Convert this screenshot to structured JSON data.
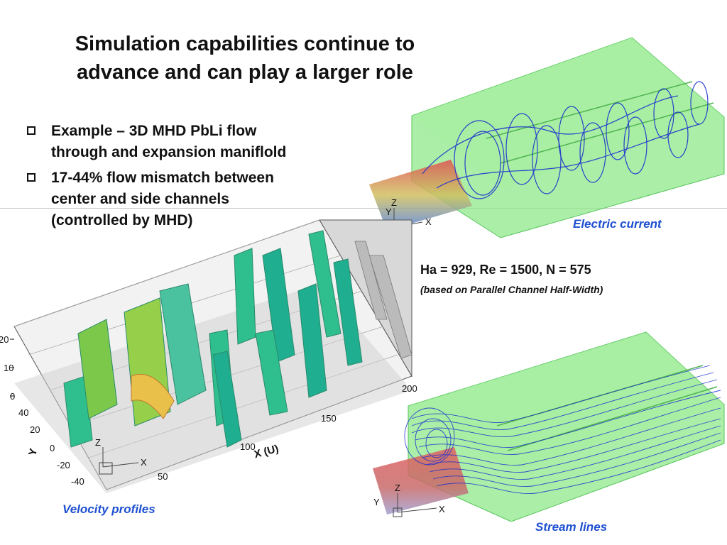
{
  "slide": {
    "title_line1": "Simulation capabilities continue to",
    "title_line2": "advance and can play a larger role",
    "bullets": [
      {
        "line1": "Example – 3D MHD PbLi flow",
        "line2": "through and expansion maniflold"
      },
      {
        "line1": "17-44% flow mismatch between",
        "line2": "center and side channels",
        "line3": "(controlled by MHD)"
      }
    ],
    "parameters": "Ha = 929, Re = 1500, N = 575",
    "parameters_note": "(based on Parallel Channel Half-Width)"
  },
  "figures": {
    "electric_current": {
      "caption": "Electric current",
      "axes": {
        "y": "Y",
        "z": "Z",
        "x": "X"
      }
    },
    "stream_lines": {
      "caption": "Stream lines",
      "axes": {
        "y": "Y",
        "z": "Z",
        "x": "X"
      }
    },
    "velocity_profiles": {
      "caption": "Velocity profiles",
      "z_ticks": [
        "20",
        "10",
        "0"
      ],
      "y_ticks": [
        "40",
        "20",
        "0",
        "-20",
        "-40"
      ],
      "x_ticks": [
        "50",
        "100",
        "150",
        "200"
      ],
      "x_axis_label": "X (U)",
      "y_axis_label": "Y",
      "triad": {
        "z": "Z",
        "x": "X"
      }
    }
  },
  "colors": {
    "caption_blue": "#1d4fd0",
    "channel_green": "#7fe07a",
    "streamline_blue": "#1a2fd0"
  }
}
